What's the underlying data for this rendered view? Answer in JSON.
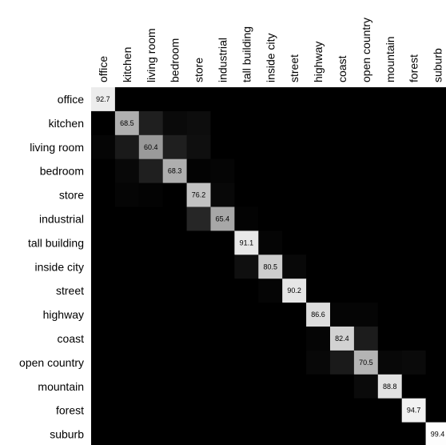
{
  "chart_data": {
    "type": "heatmap",
    "title": "",
    "xlabel": "",
    "ylabel": "",
    "columns": [
      "office",
      "kitchen",
      "living room",
      "bedroom",
      "store",
      "industrial",
      "tall building",
      "inside city",
      "street",
      "highway",
      "coast",
      "open country",
      "mountain",
      "forest",
      "suburb"
    ],
    "rows": [
      "office",
      "kitchen",
      "living room",
      "bedroom",
      "store",
      "industrial",
      "tall building",
      "inside city",
      "street",
      "highway",
      "coast",
      "open country",
      "mountain",
      "forest",
      "suburb"
    ],
    "diagonal_labels": [
      "92.7",
      "68.5",
      "60.4",
      "68.3",
      "76.2",
      "65.4",
      "91.1",
      "80.5",
      "90.2",
      "86.6",
      "82.4",
      "70.5",
      "88.8",
      "94.7",
      "99.4"
    ],
    "values": [
      [
        92.7,
        0,
        0,
        0,
        0,
        0,
        0,
        0,
        0,
        0,
        0,
        0,
        0,
        0,
        0
      ],
      [
        0,
        68.5,
        12,
        4,
        5,
        0,
        0,
        0,
        0,
        0,
        0,
        0,
        0,
        0,
        0
      ],
      [
        2,
        10,
        60.4,
        12,
        6,
        0,
        0,
        0,
        0,
        0,
        0,
        0,
        0,
        0,
        0
      ],
      [
        0,
        3,
        12,
        68.3,
        1,
        2,
        0,
        0,
        0,
        0,
        0,
        0,
        0,
        0,
        0
      ],
      [
        0,
        2,
        1,
        0,
        76.2,
        3,
        0,
        0,
        0,
        0,
        0,
        0,
        0,
        0,
        0
      ],
      [
        0,
        0,
        0,
        0,
        15,
        65.4,
        1,
        0,
        0,
        0,
        0,
        0,
        0,
        0,
        0
      ],
      [
        0,
        0,
        0,
        0,
        0,
        0,
        91.1,
        2,
        0,
        0,
        0,
        0,
        0,
        0,
        0
      ],
      [
        0,
        0,
        0,
        0,
        0,
        0,
        6,
        80.5,
        3,
        0,
        0,
        0,
        0,
        0,
        0
      ],
      [
        0,
        0,
        0,
        0,
        0,
        0,
        0,
        2,
        90.2,
        0,
        0,
        0,
        0,
        0,
        0
      ],
      [
        0,
        0,
        0,
        0,
        0,
        0,
        0,
        0,
        0,
        86.6,
        2,
        2,
        0,
        0,
        0
      ],
      [
        0,
        0,
        0,
        0,
        0,
        0,
        0,
        0,
        0,
        2,
        82.4,
        11,
        0,
        0,
        0
      ],
      [
        0,
        0,
        0,
        0,
        0,
        0,
        0,
        0,
        0,
        3,
        10,
        70.5,
        3,
        4,
        0
      ],
      [
        0,
        0,
        0,
        0,
        0,
        0,
        0,
        0,
        0,
        0,
        0,
        4,
        88.8,
        0,
        0
      ],
      [
        0,
        0,
        0,
        0,
        0,
        0,
        0,
        0,
        0,
        0,
        0,
        0,
        0,
        94.7,
        0
      ],
      [
        0,
        0,
        0,
        0,
        0,
        0,
        0,
        0,
        0,
        0,
        0,
        0,
        0,
        0,
        99.4
      ]
    ],
    "color_scale": {
      "low": "#000000",
      "high": "#ffffff",
      "min": 0,
      "max": 100
    },
    "grid": false,
    "legend": "none"
  }
}
